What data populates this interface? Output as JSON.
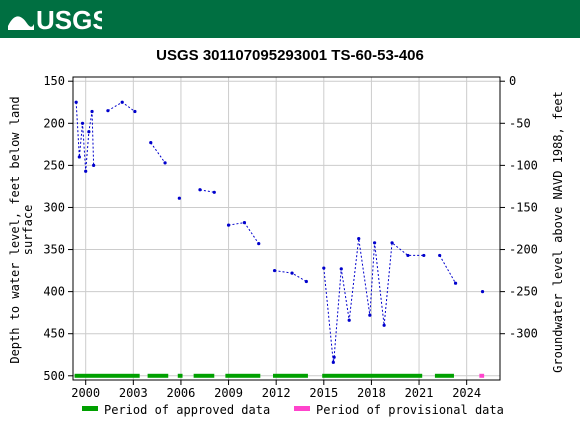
{
  "header": {
    "agency_logo_text": "USGS",
    "header_color": "#006f41"
  },
  "chart_data": {
    "type": "scatter",
    "title": "USGS 301107095293001 TS-60-53-406",
    "ylabel_left": "Depth to water level, feet below land surface",
    "ylabel_left_lines": [
      "Depth to water level, feet below land",
      "surface"
    ],
    "ylabel_right": "Groundwater level above NAVD 1988, feet",
    "x_ticks": [
      "2000",
      "2003",
      "2006",
      "2009",
      "2012",
      "2015",
      "2018",
      "2021",
      "2024"
    ],
    "x_tick_values": [
      2000,
      2003,
      2006,
      2009,
      2012,
      2015,
      2018,
      2021,
      2024
    ],
    "xlim": [
      1999.2,
      2026.1
    ],
    "ylim_left": [
      145,
      505
    ],
    "y_ticks_left": [
      150,
      200,
      250,
      300,
      350,
      400,
      450,
      500
    ],
    "y_ticks_right": [
      0,
      -50,
      -100,
      -150,
      -200,
      -250,
      -300
    ],
    "right_offset": 150,
    "grid": true,
    "series_color": "#0000cc",
    "segments": [
      [
        [
          1999.4,
          175
        ],
        [
          1999.6,
          240
        ],
        [
          1999.8,
          200
        ],
        [
          2000.0,
          257
        ],
        [
          2000.2,
          210
        ],
        [
          2000.4,
          186
        ],
        [
          2000.5,
          250
        ]
      ],
      [
        [
          2001.4,
          185
        ],
        [
          2002.3,
          175
        ],
        [
          2003.1,
          186
        ]
      ],
      [
        [
          2004.1,
          223
        ],
        [
          2005.0,
          247
        ]
      ],
      [
        [
          2005.9,
          289
        ]
      ],
      [
        [
          2007.2,
          279
        ],
        [
          2008.1,
          282
        ]
      ],
      [
        [
          2009.0,
          321
        ],
        [
          2010.0,
          318
        ],
        [
          2010.9,
          343
        ]
      ],
      [
        [
          2011.9,
          375
        ],
        [
          2013.0,
          378
        ],
        [
          2013.9,
          388
        ]
      ],
      [
        [
          2015.0,
          372
        ],
        [
          2015.6,
          484
        ],
        [
          2015.65,
          478
        ],
        [
          2016.1,
          373
        ],
        [
          2016.6,
          434
        ],
        [
          2017.2,
          337
        ],
        [
          2017.9,
          428
        ],
        [
          2018.2,
          342
        ],
        [
          2018.8,
          440
        ],
        [
          2019.3,
          342
        ],
        [
          2020.3,
          357
        ],
        [
          2021.3,
          357
        ]
      ],
      [
        [
          2022.3,
          357
        ],
        [
          2023.3,
          390
        ]
      ],
      [
        [
          2025.0,
          400
        ]
      ]
    ],
    "approved_periods": [
      [
        1999.3,
        2003.4
      ],
      [
        2003.9,
        2005.2
      ],
      [
        2005.8,
        2006.1
      ],
      [
        2006.8,
        2008.1
      ],
      [
        2008.8,
        2011.0
      ],
      [
        2011.8,
        2014.0
      ],
      [
        2014.9,
        2021.2
      ],
      [
        2022.0,
        2023.2
      ]
    ],
    "provisional_periods": [
      [
        2024.8,
        2025.1
      ]
    ],
    "approved_color": "#00a000",
    "provisional_color": "#ff44cc",
    "legend": {
      "position": "bottom",
      "approved_label": "Period of approved data",
      "provisional_label": "Period of provisional data"
    }
  }
}
